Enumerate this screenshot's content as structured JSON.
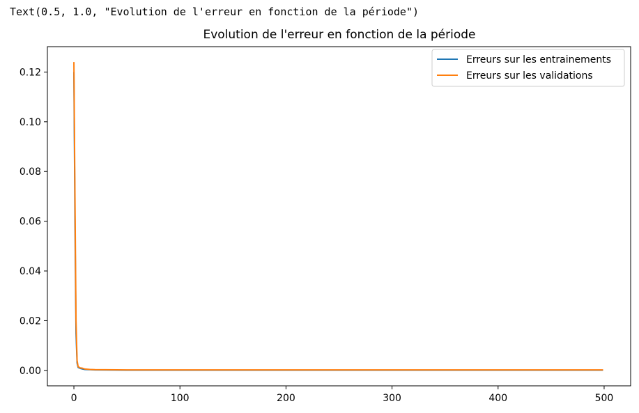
{
  "output": {
    "repr_text": "Text(0.5, 1.0, \"Evolution de l'erreur en fonction de la période\")"
  },
  "colors": {
    "series_train": "#1f77b4",
    "series_val": "#ff7f0e",
    "axes": "#000000",
    "legend_border": "#cccccc"
  },
  "chart_data": {
    "type": "line",
    "title": "Evolution de l'erreur en fonction de la période",
    "xlabel": "",
    "ylabel": "",
    "xlim": [
      -25,
      525
    ],
    "ylim": [
      -0.0062,
      0.1302
    ],
    "xticks": [
      0,
      100,
      200,
      300,
      400,
      500
    ],
    "xtick_labels": [
      "0",
      "100",
      "200",
      "300",
      "400",
      "500"
    ],
    "yticks": [
      0.0,
      0.02,
      0.04,
      0.06,
      0.08,
      0.1,
      0.12
    ],
    "ytick_labels": [
      "0.00",
      "0.02",
      "0.04",
      "0.06",
      "0.08",
      "0.10",
      "0.12"
    ],
    "grid": false,
    "legend_position": "upper right",
    "series": [
      {
        "name": "Erreurs sur les entrainements",
        "color": "#1f77b4",
        "x": [
          0,
          1,
          2,
          3,
          4,
          6,
          8,
          10,
          15,
          20,
          50,
          100,
          200,
          300,
          400,
          499
        ],
        "y": [
          0.12,
          0.06,
          0.015,
          0.003,
          0.0012,
          0.0008,
          0.0006,
          0.0004,
          0.0003,
          0.0002,
          0.0001,
          0.0001,
          0.0001,
          0.0001,
          0.0001,
          0.0001
        ]
      },
      {
        "name": "Erreurs sur les validations",
        "color": "#ff7f0e",
        "x": [
          0,
          1,
          2,
          3,
          4,
          6,
          8,
          10,
          15,
          20,
          50,
          100,
          200,
          300,
          400,
          499
        ],
        "y": [
          0.124,
          0.07,
          0.02,
          0.004,
          0.0015,
          0.001,
          0.0009,
          0.0006,
          0.0004,
          0.0003,
          0.0002,
          0.0002,
          0.0002,
          0.0002,
          0.0002,
          0.0002
        ]
      }
    ]
  }
}
